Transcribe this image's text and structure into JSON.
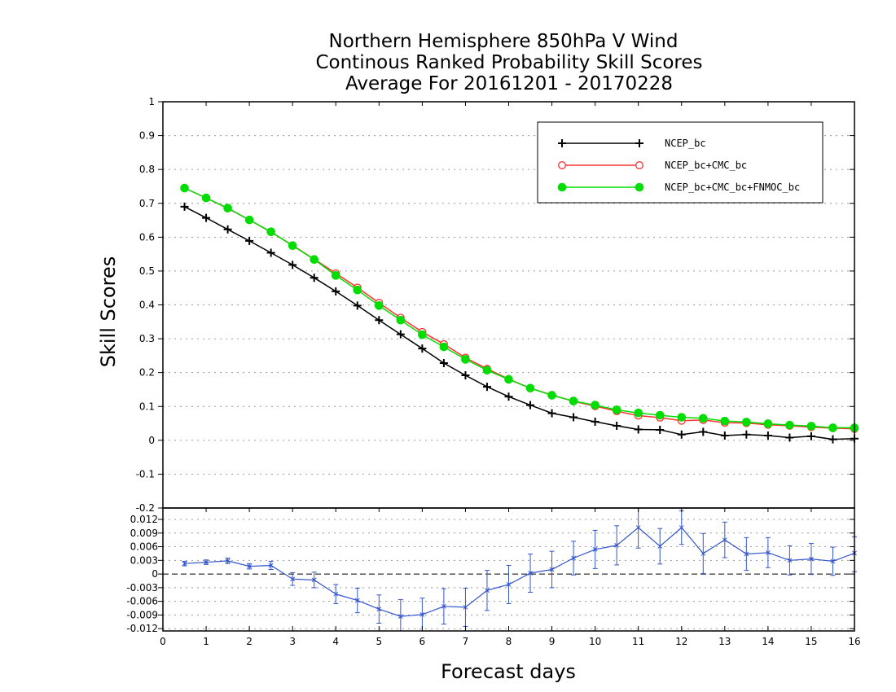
{
  "chart_data": {
    "type": "line",
    "title": [
      "Northern Hemisphere 850hPa V Wind",
      "Continous Ranked Probability Skill Scores",
      "Average For 20161201 - 20170228"
    ],
    "xlabel": "Forecast days",
    "ylabel": "Skill Scores",
    "xlim": [
      0,
      16
    ],
    "x_ticks": [
      "0",
      "1",
      "2",
      "3",
      "4",
      "5",
      "6",
      "7",
      "8",
      "9",
      "10",
      "11",
      "12",
      "13",
      "14",
      "15",
      "16"
    ],
    "grid": true,
    "legend_position": "top-right",
    "top_panel": {
      "ylim": [
        -0.2,
        1
      ],
      "y_ticks": [
        "1",
        "0.9",
        "0.8",
        "0.7",
        "0.6",
        "0.5",
        "0.4",
        "0.3",
        "0.2",
        "0.1",
        "0",
        "-0.1",
        "-0.2"
      ],
      "x": [
        0.5,
        1,
        1.5,
        2,
        2.5,
        3,
        3.5,
        4,
        4.5,
        5,
        5.5,
        6,
        6.5,
        7,
        7.5,
        8,
        8.5,
        9,
        9.5,
        10,
        10.5,
        11,
        11.5,
        12,
        12.5,
        13,
        13.5,
        14,
        14.5,
        15,
        15.5,
        16
      ],
      "series": [
        {
          "name": "NCEP_bc",
          "color": "#000000",
          "marker": "plus",
          "values": [
            0.69,
            0.657,
            0.623,
            0.589,
            0.554,
            0.518,
            0.48,
            0.44,
            0.398,
            0.355,
            0.313,
            0.271,
            0.228,
            0.192,
            0.158,
            0.129,
            0.104,
            0.08,
            0.068,
            0.055,
            0.043,
            0.032,
            0.031,
            0.017,
            0.025,
            0.014,
            0.017,
            0.014,
            0.008,
            0.012,
            0.003,
            0.005
          ]
        },
        {
          "name": "NCEP_bc+CMC_bc",
          "color": "#ff3030",
          "marker": "open-circle",
          "values": [
            0.745,
            0.716,
            0.685,
            0.651,
            0.615,
            0.576,
            0.535,
            0.493,
            0.451,
            0.406,
            0.362,
            0.32,
            0.284,
            0.244,
            0.211,
            0.181,
            0.154,
            0.134,
            0.115,
            0.101,
            0.086,
            0.073,
            0.067,
            0.058,
            0.06,
            0.052,
            0.051,
            0.046,
            0.043,
            0.039,
            0.036,
            0.034
          ]
        },
        {
          "name": "NCEP_bc+CMC_bc+FNMOC_bc",
          "color": "#00dd00",
          "marker": "filled-circle",
          "values": [
            0.745,
            0.716,
            0.686,
            0.651,
            0.616,
            0.575,
            0.534,
            0.487,
            0.444,
            0.398,
            0.355,
            0.312,
            0.276,
            0.239,
            0.207,
            0.18,
            0.154,
            0.133,
            0.116,
            0.104,
            0.09,
            0.081,
            0.074,
            0.068,
            0.065,
            0.057,
            0.054,
            0.049,
            0.045,
            0.042,
            0.037,
            0.037
          ]
        }
      ]
    },
    "bottom_panel": {
      "ylim": [
        -0.0125,
        0.0145
      ],
      "y_ticks": [
        "0.012",
        "0.009",
        "0.006",
        "0.003",
        "0",
        "-0.003",
        "-0.006",
        "-0.009",
        "-0.012"
      ],
      "color": "#3355cc",
      "x": [
        0.5,
        1,
        1.5,
        2,
        2.5,
        3,
        3.5,
        4,
        4.5,
        5,
        5.5,
        6,
        6.5,
        7,
        7.5,
        8,
        8.5,
        9,
        9.5,
        10,
        10.5,
        11,
        11.5,
        12,
        12.5,
        13,
        13.5,
        14,
        14.5,
        15,
        15.5,
        16
      ],
      "values": [
        0.0023,
        0.0026,
        0.0029,
        0.0017,
        0.0019,
        -0.0011,
        -0.0013,
        -0.0044,
        -0.0058,
        -0.0077,
        -0.0093,
        -0.0089,
        -0.0071,
        -0.0073,
        -0.0036,
        -0.0023,
        0.0002,
        0.001,
        0.0035,
        0.0054,
        0.0063,
        0.0102,
        0.0061,
        0.0102,
        0.0045,
        0.0075,
        0.0044,
        0.0047,
        0.003,
        0.0033,
        0.0028,
        0.0046
      ],
      "error_low": [
        0.0018,
        0.0021,
        0.0023,
        0.0011,
        0.001,
        -0.0025,
        -0.003,
        -0.0065,
        -0.0085,
        -0.0108,
        -0.013,
        -0.0125,
        -0.011,
        -0.0115,
        -0.008,
        -0.0065,
        -0.004,
        -0.003,
        -0.0002,
        0.0012,
        0.002,
        0.0057,
        0.0022,
        0.0065,
        0.0001,
        0.0036,
        0.0008,
        0.0014,
        -0.0002,
        -0.0001,
        -0.0003,
        0.0005
      ],
      "error_high": [
        0.0028,
        0.0031,
        0.0035,
        0.0023,
        0.0028,
        0.0003,
        0.0004,
        -0.0023,
        -0.0031,
        -0.0046,
        -0.0056,
        -0.0053,
        -0.0032,
        -0.0031,
        0.0008,
        0.0019,
        0.0044,
        0.005,
        0.0072,
        0.0096,
        0.0106,
        0.0147,
        0.01,
        0.0139,
        0.0089,
        0.0114,
        0.008,
        0.008,
        0.0062,
        0.0067,
        0.0059,
        0.0082
      ]
    }
  }
}
